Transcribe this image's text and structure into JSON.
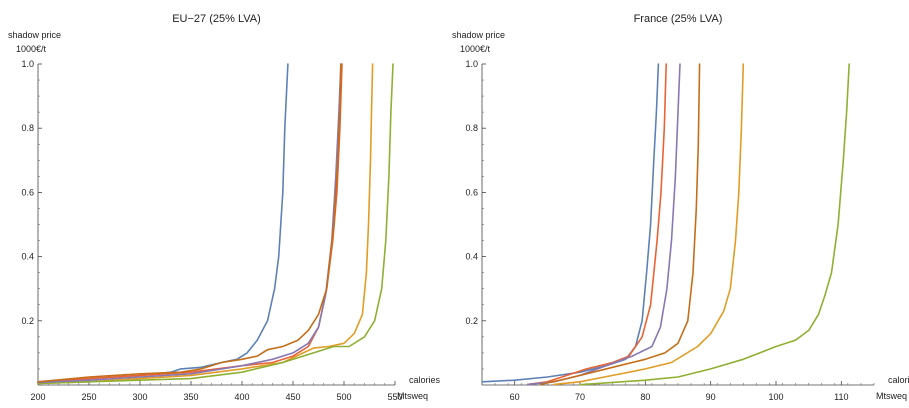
{
  "chart_data": [
    {
      "type": "line",
      "title": "EU−27 (25% LVA)",
      "ylabel_line1": "shadow price",
      "ylabel_line2": "1000€/t",
      "xlabel_line1": "calories",
      "xlabel_line2": "Mtsweq",
      "xlim": [
        200,
        550
      ],
      "ylim": [
        0,
        1.0
      ],
      "xticks": [
        200,
        250,
        300,
        350,
        400,
        450,
        500,
        550
      ],
      "yticks": [
        0.2,
        0.4,
        0.6,
        0.8,
        1.0
      ],
      "ytick_labels": [
        "0.2",
        "0.4",
        "0.6",
        "0.8",
        "1.0"
      ],
      "grid": false,
      "series": [
        {
          "color": "#5e81b5",
          "points": [
            [
              200,
              0.01
            ],
            [
              230,
              0.015
            ],
            [
              260,
              0.022
            ],
            [
              300,
              0.03
            ],
            [
              330,
              0.04
            ],
            [
              340,
              0.05
            ],
            [
              360,
              0.055
            ],
            [
              380,
              0.07
            ],
            [
              395,
              0.08
            ],
            [
              405,
              0.1
            ],
            [
              415,
              0.14
            ],
            [
              425,
              0.2
            ],
            [
              432,
              0.3
            ],
            [
              436,
              0.4
            ],
            [
              440,
              0.6
            ],
            [
              442,
              0.8
            ],
            [
              445,
              1.0
            ]
          ]
        },
        {
          "color": "#e19c24",
          "points": [
            [
              200,
              0.005
            ],
            [
              250,
              0.01
            ],
            [
              300,
              0.02
            ],
            [
              350,
              0.03
            ],
            [
              400,
              0.05
            ],
            [
              440,
              0.07
            ],
            [
              460,
              0.1
            ],
            [
              470,
              0.115
            ],
            [
              485,
              0.12
            ],
            [
              500,
              0.13
            ],
            [
              510,
              0.16
            ],
            [
              518,
              0.22
            ],
            [
              522,
              0.35
            ],
            [
              524,
              0.5
            ],
            [
              526,
              0.7
            ],
            [
              527,
              0.85
            ],
            [
              528,
              1.0
            ]
          ]
        },
        {
          "color": "#8fb032",
          "points": [
            [
              200,
              0.005
            ],
            [
              250,
              0.01
            ],
            [
              300,
              0.015
            ],
            [
              350,
              0.02
            ],
            [
              400,
              0.04
            ],
            [
              440,
              0.07
            ],
            [
              470,
              0.1
            ],
            [
              490,
              0.12
            ],
            [
              505,
              0.12
            ],
            [
              520,
              0.15
            ],
            [
              530,
              0.2
            ],
            [
              537,
              0.3
            ],
            [
              541,
              0.45
            ],
            [
              544,
              0.65
            ],
            [
              546,
              0.85
            ],
            [
              548,
              1.0
            ]
          ]
        },
        {
          "color": "#eb6235",
          "points": [
            [
              200,
              0.008
            ],
            [
              250,
              0.02
            ],
            [
              300,
              0.03
            ],
            [
              350,
              0.04
            ],
            [
              400,
              0.06
            ],
            [
              430,
              0.07
            ],
            [
              450,
              0.09
            ],
            [
              465,
              0.12
            ],
            [
              475,
              0.18
            ],
            [
              483,
              0.3
            ],
            [
              489,
              0.45
            ],
            [
              493,
              0.6
            ],
            [
              496,
              0.8
            ],
            [
              498,
              1.0
            ]
          ]
        },
        {
          "color": "#8778b3",
          "points": [
            [
              200,
              0.008
            ],
            [
              250,
              0.015
            ],
            [
              300,
              0.025
            ],
            [
              350,
              0.035
            ],
            [
              400,
              0.06
            ],
            [
              430,
              0.08
            ],
            [
              450,
              0.1
            ],
            [
              465,
              0.13
            ],
            [
              475,
              0.18
            ],
            [
              482,
              0.28
            ],
            [
              488,
              0.45
            ],
            [
              492,
              0.65
            ],
            [
              495,
              0.85
            ],
            [
              497,
              1.0
            ]
          ]
        },
        {
          "color": "#c56e1a",
          "points": [
            [
              200,
              0.01
            ],
            [
              250,
              0.025
            ],
            [
              300,
              0.035
            ],
            [
              340,
              0.04
            ],
            [
              360,
              0.05
            ],
            [
              380,
              0.07
            ],
            [
              400,
              0.08
            ],
            [
              415,
              0.09
            ],
            [
              425,
              0.11
            ],
            [
              440,
              0.12
            ],
            [
              455,
              0.14
            ],
            [
              465,
              0.17
            ],
            [
              475,
              0.22
            ],
            [
              483,
              0.3
            ],
            [
              490,
              0.5
            ],
            [
              494,
              0.7
            ],
            [
              496,
              0.85
            ],
            [
              497,
              1.0
            ]
          ]
        }
      ]
    },
    {
      "type": "line",
      "title": "France (25% LVA)",
      "ylabel_line1": "shadow price",
      "ylabel_line2": "1000€/t",
      "xlabel_line1": "calories",
      "xlabel_line2": "Mtsweq",
      "xlim": [
        55,
        115
      ],
      "ylim": [
        0,
        1.0
      ],
      "xticks": [
        60,
        70,
        80,
        90,
        100,
        110
      ],
      "yticks": [
        0.2,
        0.4,
        0.6,
        0.8,
        1.0
      ],
      "ytick_labels": [
        "0.2",
        "0.4",
        "0.6",
        "0.8",
        "1.0"
      ],
      "grid": false,
      "series": [
        {
          "color": "#5e81b5",
          "points": [
            [
              55,
              0.01
            ],
            [
              60,
              0.015
            ],
            [
              65,
              0.025
            ],
            [
              70,
              0.04
            ],
            [
              74,
              0.06
            ],
            [
              77,
              0.08
            ],
            [
              78.5,
              0.12
            ],
            [
              79.5,
              0.2
            ],
            [
              80.2,
              0.35
            ],
            [
              80.8,
              0.5
            ],
            [
              81.3,
              0.7
            ],
            [
              81.7,
              0.85
            ],
            [
              82,
              1.0
            ]
          ]
        },
        {
          "color": "#eb6235",
          "points": [
            [
              62,
              0.002
            ],
            [
              65,
              0.01
            ],
            [
              68,
              0.03
            ],
            [
              71,
              0.05
            ],
            [
              75,
              0.07
            ],
            [
              77.5,
              0.09
            ],
            [
              79.5,
              0.15
            ],
            [
              80.8,
              0.25
            ],
            [
              81.8,
              0.45
            ],
            [
              82.4,
              0.6
            ],
            [
              82.9,
              0.8
            ],
            [
              83.2,
              1.0
            ]
          ]
        },
        {
          "color": "#8778b3",
          "points": [
            [
              62,
              0.002
            ],
            [
              66,
              0.01
            ],
            [
              70,
              0.03
            ],
            [
              74,
              0.06
            ],
            [
              78,
              0.09
            ],
            [
              81,
              0.12
            ],
            [
              82.3,
              0.18
            ],
            [
              83.3,
              0.3
            ],
            [
              84,
              0.45
            ],
            [
              84.6,
              0.65
            ],
            [
              85,
              0.85
            ],
            [
              85.3,
              1.0
            ]
          ]
        },
        {
          "color": "#c56e1a",
          "points": [
            [
              64,
              0.002
            ],
            [
              68,
              0.02
            ],
            [
              72,
              0.04
            ],
            [
              76,
              0.06
            ],
            [
              80,
              0.08
            ],
            [
              83,
              0.1
            ],
            [
              85,
              0.13
            ],
            [
              86.5,
              0.2
            ],
            [
              87.3,
              0.35
            ],
            [
              87.8,
              0.55
            ],
            [
              88.1,
              0.75
            ],
            [
              88.3,
              1.0
            ]
          ]
        },
        {
          "color": "#e19c24",
          "points": [
            [
              66,
              0.002
            ],
            [
              70,
              0.01
            ],
            [
              75,
              0.03
            ],
            [
              80,
              0.05
            ],
            [
              84,
              0.07
            ],
            [
              88,
              0.12
            ],
            [
              90,
              0.16
            ],
            [
              92,
              0.23
            ],
            [
              93,
              0.3
            ],
            [
              93.8,
              0.45
            ],
            [
              94.3,
              0.6
            ],
            [
              94.7,
              0.8
            ],
            [
              95,
              1.0
            ]
          ]
        },
        {
          "color": "#8fb032",
          "points": [
            [
              70,
              0.001
            ],
            [
              75,
              0.008
            ],
            [
              80,
              0.015
            ],
            [
              85,
              0.025
            ],
            [
              90,
              0.05
            ],
            [
              95,
              0.08
            ],
            [
              100,
              0.12
            ],
            [
              103,
              0.14
            ],
            [
              105,
              0.17
            ],
            [
              106.5,
              0.22
            ],
            [
              107.5,
              0.28
            ],
            [
              108.5,
              0.35
            ],
            [
              109.5,
              0.5
            ],
            [
              110.3,
              0.7
            ],
            [
              110.8,
              0.85
            ],
            [
              111.2,
              1.0
            ]
          ]
        }
      ]
    }
  ]
}
